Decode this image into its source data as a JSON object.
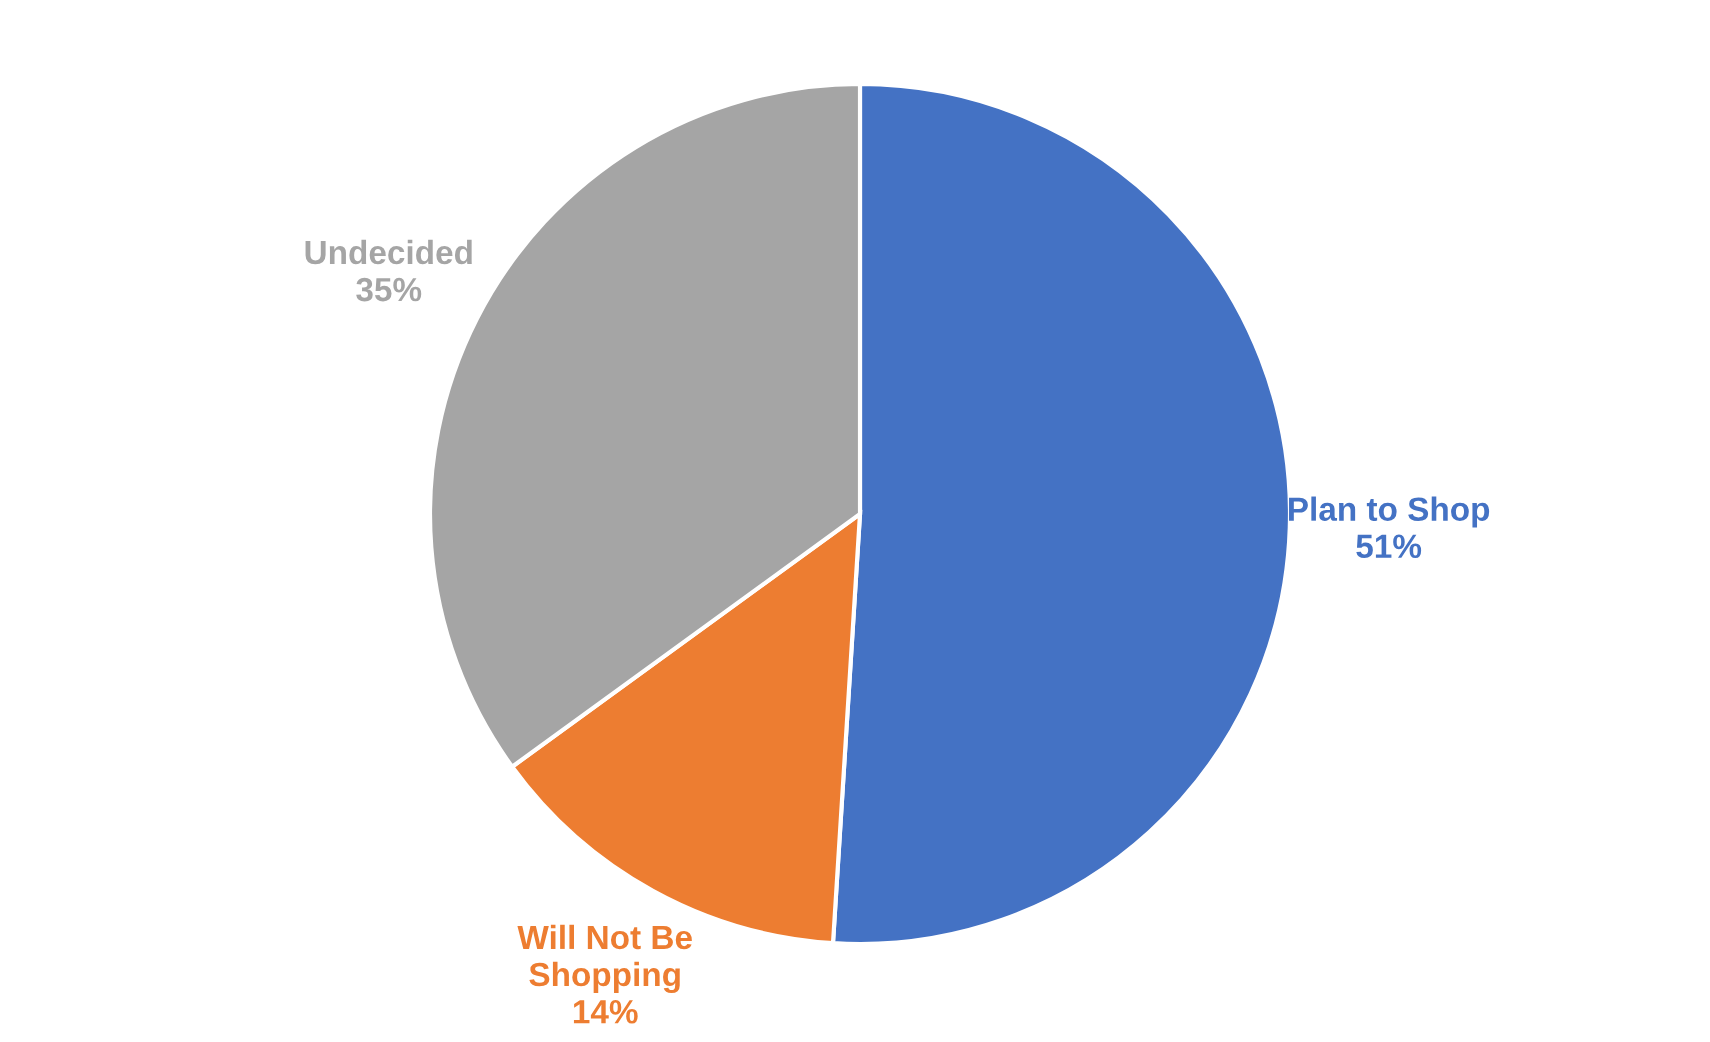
{
  "chart_data": {
    "type": "pie",
    "categories": [
      "Plan to Shop",
      "Will Not Be\nShopping",
      "Undecided"
    ],
    "values": [
      51,
      14,
      35
    ],
    "value_labels": [
      "51%",
      "14%",
      "35%"
    ],
    "colors": [
      "#4472c4",
      "#ed7d31",
      "#a5a5a5"
    ],
    "legend": false
  }
}
